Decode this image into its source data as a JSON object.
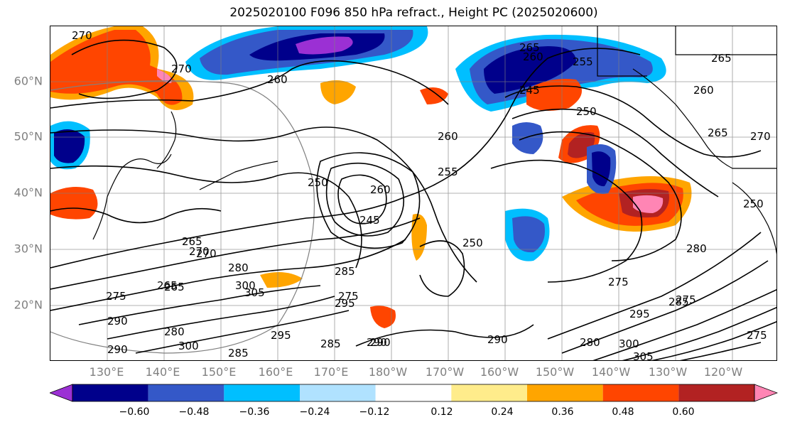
{
  "title": "2025020100 F096 850 hPa refract., Height PC (2025020600)",
  "lat_labels": [
    {
      "label": "60°N",
      "lat": 60
    },
    {
      "label": "50°N",
      "lat": 50
    },
    {
      "label": "40°N",
      "lat": 40
    },
    {
      "label": "30°N",
      "lat": 30
    },
    {
      "label": "20°N",
      "lat": 20
    }
  ],
  "lon_labels": [
    "130°E",
    "140°E",
    "150°E",
    "160°E",
    "170°E",
    "180°W",
    "170°W",
    "160°W",
    "150°W",
    "140°W",
    "130°W",
    "120°W"
  ],
  "colorbar": {
    "ticks": [
      "−0.60",
      "−0.48",
      "−0.36",
      "−0.24",
      "−0.12",
      "0.12",
      "0.24",
      "0.36",
      "0.48",
      "0.60"
    ],
    "colors": [
      "#9b30d4",
      "#00008b",
      "#3458c8",
      "#00bfff",
      "#b0e2ff",
      "#ffffff",
      "#ffec8b",
      "#ffa500",
      "#ff4500",
      "#b22222",
      "#ff85b4"
    ]
  },
  "contour_labels": [
    "270",
    "270",
    "265",
    "260",
    "255",
    "245",
    "250",
    "265",
    "265",
    "270",
    "260",
    "260",
    "255",
    "250",
    "260",
    "245",
    "265",
    "270",
    "280",
    "275",
    "265",
    "290",
    "300",
    "305",
    "295",
    "285",
    "280",
    "275",
    "285",
    "290",
    "295",
    "300",
    "290",
    "285",
    "250",
    "275",
    "280",
    "285",
    "275",
    "290",
    "305",
    "300",
    "295",
    "275",
    "280",
    "250",
    "270",
    "265",
    "290",
    "260"
  ]
}
